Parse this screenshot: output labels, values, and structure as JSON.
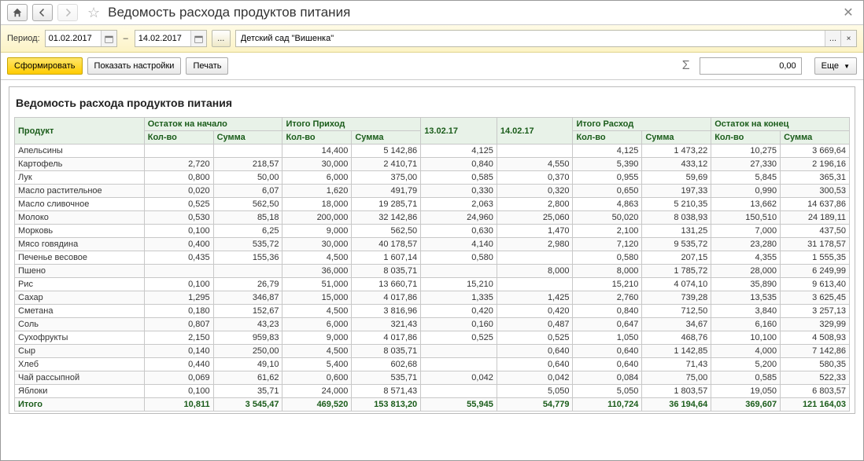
{
  "window": {
    "title": "Ведомость расхода продуктов питания"
  },
  "filter": {
    "period_label": "Период:",
    "date_from": "01.02.2017",
    "date_to": "14.02.2017",
    "ellipsis": "...",
    "org": "Детский сад \"Вишенка\""
  },
  "toolbar": {
    "run": "Сформировать",
    "settings": "Показать настройки",
    "print": "Печать",
    "sum_value": "0,00",
    "more": "Еще"
  },
  "report": {
    "title": "Ведомость расхода продуктов питания",
    "groups": {
      "product": "Продукт",
      "start": "Остаток на начало",
      "income": "Итого Приход",
      "d1": "13.02.17",
      "d2": "14.02.17",
      "expense": "Итого Расход",
      "end": "Остаток на конец"
    },
    "sub": {
      "qty": "Кол-во",
      "sum": "Сумма"
    },
    "rows": [
      {
        "name": "Апельсины",
        "sq": "",
        "ss": "",
        "iq": "14,400",
        "is": "5 142,86",
        "d1": "4,125",
        "d2": "",
        "eq": "4,125",
        "es": "1 473,22",
        "eqq": "10,275",
        "ess": "3 669,64"
      },
      {
        "name": "Картофель",
        "sq": "2,720",
        "ss": "218,57",
        "iq": "30,000",
        "is": "2 410,71",
        "d1": "0,840",
        "d2": "4,550",
        "eq": "5,390",
        "es": "433,12",
        "eqq": "27,330",
        "ess": "2 196,16"
      },
      {
        "name": "Лук",
        "sq": "0,800",
        "ss": "50,00",
        "iq": "6,000",
        "is": "375,00",
        "d1": "0,585",
        "d2": "0,370",
        "eq": "0,955",
        "es": "59,69",
        "eqq": "5,845",
        "ess": "365,31"
      },
      {
        "name": "Масло растительное",
        "sq": "0,020",
        "ss": "6,07",
        "iq": "1,620",
        "is": "491,79",
        "d1": "0,330",
        "d2": "0,320",
        "eq": "0,650",
        "es": "197,33",
        "eqq": "0,990",
        "ess": "300,53"
      },
      {
        "name": "Масло сливочное",
        "sq": "0,525",
        "ss": "562,50",
        "iq": "18,000",
        "is": "19 285,71",
        "d1": "2,063",
        "d2": "2,800",
        "eq": "4,863",
        "es": "5 210,35",
        "eqq": "13,662",
        "ess": "14 637,86"
      },
      {
        "name": "Молоко",
        "sq": "0,530",
        "ss": "85,18",
        "iq": "200,000",
        "is": "32 142,86",
        "d1": "24,960",
        "d2": "25,060",
        "eq": "50,020",
        "es": "8 038,93",
        "eqq": "150,510",
        "ess": "24 189,11"
      },
      {
        "name": "Морковь",
        "sq": "0,100",
        "ss": "6,25",
        "iq": "9,000",
        "is": "562,50",
        "d1": "0,630",
        "d2": "1,470",
        "eq": "2,100",
        "es": "131,25",
        "eqq": "7,000",
        "ess": "437,50"
      },
      {
        "name": "Мясо говядина",
        "sq": "0,400",
        "ss": "535,72",
        "iq": "30,000",
        "is": "40 178,57",
        "d1": "4,140",
        "d2": "2,980",
        "eq": "7,120",
        "es": "9 535,72",
        "eqq": "23,280",
        "ess": "31 178,57"
      },
      {
        "name": "Печенье весовое",
        "sq": "0,435",
        "ss": "155,36",
        "iq": "4,500",
        "is": "1 607,14",
        "d1": "0,580",
        "d2": "",
        "eq": "0,580",
        "es": "207,15",
        "eqq": "4,355",
        "ess": "1 555,35"
      },
      {
        "name": "Пшено",
        "sq": "",
        "ss": "",
        "iq": "36,000",
        "is": "8 035,71",
        "d1": "",
        "d2": "8,000",
        "eq": "8,000",
        "es": "1 785,72",
        "eqq": "28,000",
        "ess": "6 249,99"
      },
      {
        "name": "Рис",
        "sq": "0,100",
        "ss": "26,79",
        "iq": "51,000",
        "is": "13 660,71",
        "d1": "15,210",
        "d2": "",
        "eq": "15,210",
        "es": "4 074,10",
        "eqq": "35,890",
        "ess": "9 613,40"
      },
      {
        "name": "Сахар",
        "sq": "1,295",
        "ss": "346,87",
        "iq": "15,000",
        "is": "4 017,86",
        "d1": "1,335",
        "d2": "1,425",
        "eq": "2,760",
        "es": "739,28",
        "eqq": "13,535",
        "ess": "3 625,45"
      },
      {
        "name": "Сметана",
        "sq": "0,180",
        "ss": "152,67",
        "iq": "4,500",
        "is": "3 816,96",
        "d1": "0,420",
        "d2": "0,420",
        "eq": "0,840",
        "es": "712,50",
        "eqq": "3,840",
        "ess": "3 257,13"
      },
      {
        "name": "Соль",
        "sq": "0,807",
        "ss": "43,23",
        "iq": "6,000",
        "is": "321,43",
        "d1": "0,160",
        "d2": "0,487",
        "eq": "0,647",
        "es": "34,67",
        "eqq": "6,160",
        "ess": "329,99"
      },
      {
        "name": "Сухофрукты",
        "sq": "2,150",
        "ss": "959,83",
        "iq": "9,000",
        "is": "4 017,86",
        "d1": "0,525",
        "d2": "0,525",
        "eq": "1,050",
        "es": "468,76",
        "eqq": "10,100",
        "ess": "4 508,93"
      },
      {
        "name": "Сыр",
        "sq": "0,140",
        "ss": "250,00",
        "iq": "4,500",
        "is": "8 035,71",
        "d1": "",
        "d2": "0,640",
        "eq": "0,640",
        "es": "1 142,85",
        "eqq": "4,000",
        "ess": "7 142,86"
      },
      {
        "name": "Хлеб",
        "sq": "0,440",
        "ss": "49,10",
        "iq": "5,400",
        "is": "602,68",
        "d1": "",
        "d2": "0,640",
        "eq": "0,640",
        "es": "71,43",
        "eqq": "5,200",
        "ess": "580,35"
      },
      {
        "name": "Чай рассыпной",
        "sq": "0,069",
        "ss": "61,62",
        "iq": "0,600",
        "is": "535,71",
        "d1": "0,042",
        "d2": "0,042",
        "eq": "0,084",
        "es": "75,00",
        "eqq": "0,585",
        "ess": "522,33"
      },
      {
        "name": "Яблоки",
        "sq": "0,100",
        "ss": "35,71",
        "iq": "24,000",
        "is": "8 571,43",
        "d1": "",
        "d2": "5,050",
        "eq": "5,050",
        "es": "1 803,57",
        "eqq": "19,050",
        "ess": "6 803,57"
      }
    ],
    "total": {
      "name": "Итого",
      "sq": "10,811",
      "ss": "3 545,47",
      "iq": "469,520",
      "is": "153 813,20",
      "d1": "55,945",
      "d2": "54,779",
      "eq": "110,724",
      "es": "36 194,64",
      "eqq": "369,607",
      "ess": "121 164,03"
    }
  }
}
